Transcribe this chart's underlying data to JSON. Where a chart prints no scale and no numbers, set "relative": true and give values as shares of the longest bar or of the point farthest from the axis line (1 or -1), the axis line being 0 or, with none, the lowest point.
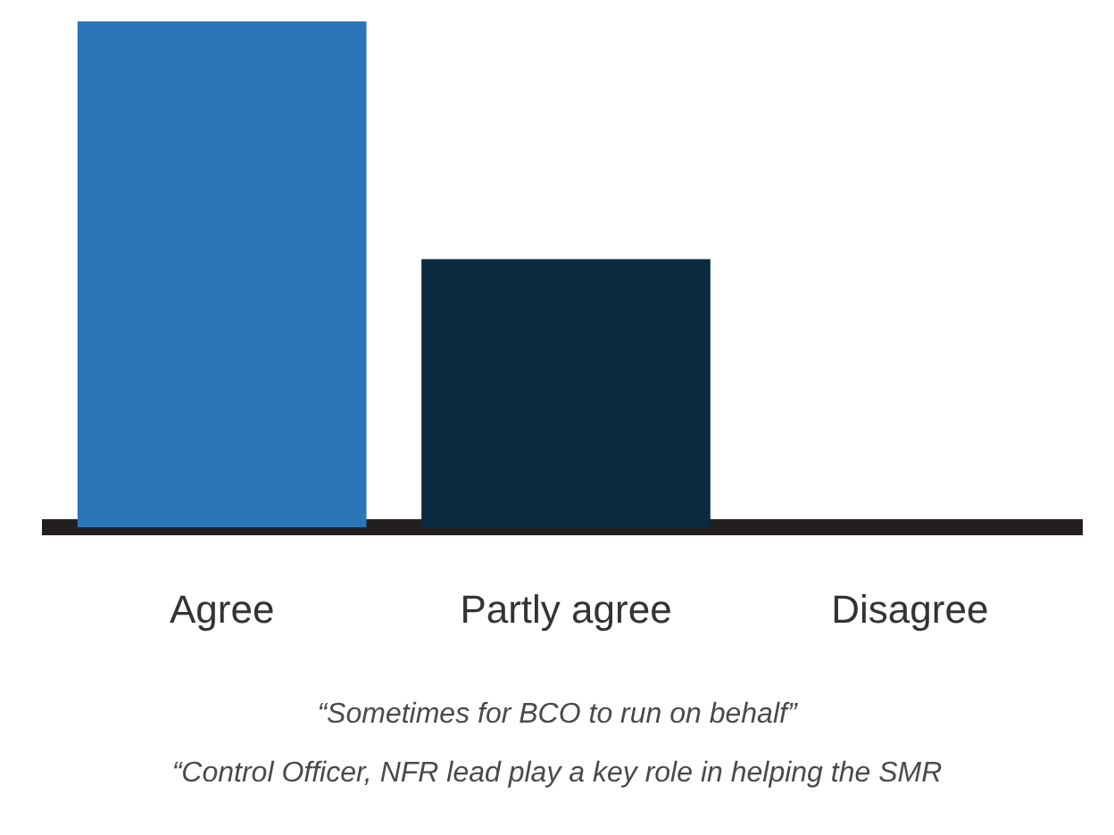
{
  "chart_data": {
    "type": "bar",
    "relative": true,
    "categories": [
      "Agree",
      "Partly agree",
      "Disagree"
    ],
    "values": [
      1,
      0.53,
      0
    ],
    "colors": [
      "#2b76b9",
      "#0b2a40",
      "#0b2a40"
    ],
    "annotations": [
      "“Sometimes for BCO to run on behalf”",
      "“Control Officer, NFR lead play a key role in helping the SMR"
    ]
  }
}
